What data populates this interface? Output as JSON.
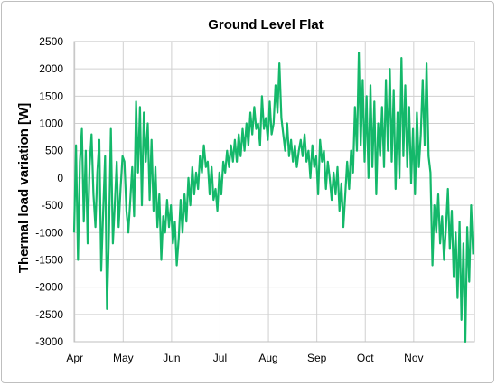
{
  "chart_data": {
    "type": "line",
    "title": "Ground Level Flat",
    "xlabel": "",
    "ylabel": "Thermal load variation [W]",
    "ylim": [
      -3000,
      2500
    ],
    "yticks": [
      2500,
      2000,
      1500,
      1000,
      500,
      0,
      -500,
      -1000,
      -1500,
      -2000,
      -2500,
      -3000
    ],
    "categories": [
      "Apr",
      "May",
      "Jun",
      "Jul",
      "Aug",
      "Sep",
      "Oct",
      "Nov"
    ],
    "grid": true,
    "legend": "none",
    "color": "#14b86a",
    "series": [
      {
        "name": "",
        "points": [
          [
            0.0,
            -1000
          ],
          [
            0.06,
            600
          ],
          [
            0.12,
            -1500
          ],
          [
            0.18,
            300
          ],
          [
            0.24,
            900
          ],
          [
            0.3,
            -800
          ],
          [
            0.36,
            500
          ],
          [
            0.42,
            -1200
          ],
          [
            0.48,
            200
          ],
          [
            0.54,
            800
          ],
          [
            0.6,
            -300
          ],
          [
            0.66,
            -900
          ],
          [
            0.72,
            100
          ],
          [
            0.78,
            700
          ],
          [
            0.84,
            -1700
          ],
          [
            0.9,
            -600
          ],
          [
            0.96,
            400
          ],
          [
            1.02,
            -2400
          ],
          [
            1.08,
            -1000
          ],
          [
            1.14,
            900
          ],
          [
            1.2,
            -1200
          ],
          [
            1.26,
            -500
          ],
          [
            1.32,
            300
          ],
          [
            1.38,
            -900
          ],
          [
            1.44,
            -200
          ],
          [
            1.5,
            400
          ],
          [
            1.56,
            300
          ],
          [
            1.62,
            -600
          ],
          [
            1.68,
            -1000
          ],
          [
            1.74,
            -400
          ],
          [
            1.8,
            200
          ],
          [
            1.86,
            -700
          ],
          [
            1.92,
            1400
          ],
          [
            1.98,
            100
          ],
          [
            2.04,
            1300
          ],
          [
            2.1,
            -500
          ],
          [
            2.16,
            1200
          ],
          [
            2.22,
            300
          ],
          [
            2.28,
            1000
          ],
          [
            2.34,
            -400
          ],
          [
            2.4,
            700
          ],
          [
            2.46,
            -600
          ],
          [
            2.52,
            200
          ],
          [
            2.58,
            -900
          ],
          [
            2.64,
            -300
          ],
          [
            2.7,
            -1500
          ],
          [
            2.76,
            -700
          ],
          [
            2.82,
            -1000
          ],
          [
            2.88,
            -400
          ],
          [
            2.94,
            -900
          ],
          [
            3.0,
            -500
          ],
          [
            3.06,
            -1200
          ],
          [
            3.12,
            -800
          ],
          [
            3.18,
            -1600
          ],
          [
            3.24,
            -1100
          ],
          [
            3.3,
            -400
          ],
          [
            3.36,
            -1000
          ],
          [
            3.42,
            -300
          ],
          [
            3.48,
            -800
          ],
          [
            3.54,
            0
          ],
          [
            3.6,
            -500
          ],
          [
            3.66,
            200
          ],
          [
            3.72,
            -300
          ],
          [
            3.78,
            100
          ],
          [
            3.84,
            -200
          ],
          [
            3.9,
            400
          ],
          [
            3.96,
            100
          ],
          [
            4.02,
            600
          ],
          [
            4.08,
            200
          ],
          [
            4.14,
            300
          ],
          [
            4.2,
            -300
          ],
          [
            4.26,
            200
          ],
          [
            4.32,
            -400
          ],
          [
            4.38,
            -200
          ],
          [
            4.44,
            -600
          ],
          [
            4.5,
            100
          ],
          [
            4.56,
            -300
          ],
          [
            4.62,
            300
          ],
          [
            4.68,
            100
          ],
          [
            4.74,
            500
          ],
          [
            4.8,
            200
          ],
          [
            4.86,
            600
          ],
          [
            4.92,
            300
          ],
          [
            4.98,
            700
          ],
          [
            5.04,
            300
          ],
          [
            5.1,
            800
          ],
          [
            5.16,
            400
          ],
          [
            5.22,
            900
          ],
          [
            5.28,
            500
          ],
          [
            5.34,
            1000
          ],
          [
            5.4,
            600
          ],
          [
            5.46,
            1200
          ],
          [
            5.52,
            800
          ],
          [
            5.58,
            1300
          ],
          [
            5.64,
            900
          ],
          [
            5.7,
            1000
          ],
          [
            5.76,
            600
          ],
          [
            5.82,
            1500
          ],
          [
            5.88,
            900
          ],
          [
            5.94,
            1100
          ],
          [
            6.0,
            700
          ],
          [
            6.06,
            1400
          ],
          [
            6.12,
            800
          ],
          [
            6.18,
            1000
          ],
          [
            6.24,
            1700
          ],
          [
            6.3,
            1200
          ],
          [
            6.36,
            2100
          ],
          [
            6.42,
            1100
          ],
          [
            6.48,
            800
          ],
          [
            6.54,
            500
          ],
          [
            6.6,
            1000
          ],
          [
            6.66,
            400
          ],
          [
            6.72,
            700
          ],
          [
            6.78,
            300
          ],
          [
            6.84,
            600
          ],
          [
            6.9,
            200
          ],
          [
            6.96,
            500
          ],
          [
            7.02,
            700
          ],
          [
            7.08,
            400
          ],
          [
            7.14,
            800
          ],
          [
            7.2,
            300
          ],
          [
            7.26,
            500
          ],
          [
            7.32,
            0
          ],
          [
            7.38,
            600
          ],
          [
            7.44,
            200
          ],
          [
            7.5,
            400
          ],
          [
            7.56,
            -300
          ],
          [
            7.62,
            700
          ],
          [
            7.68,
            300
          ],
          [
            7.74,
            500
          ],
          [
            7.8,
            -200
          ],
          [
            7.86,
            300
          ],
          [
            7.92,
            0
          ],
          [
            7.98,
            -400
          ],
          [
            8.04,
            100
          ],
          [
            8.1,
            -300
          ],
          [
            8.16,
            200
          ],
          [
            8.22,
            -600
          ],
          [
            8.28,
            -100
          ],
          [
            8.34,
            -900
          ],
          [
            8.4,
            -300
          ],
          [
            8.46,
            300
          ],
          [
            8.52,
            -200
          ],
          [
            8.58,
            500
          ],
          [
            8.64,
            100
          ],
          [
            8.7,
            1300
          ],
          [
            8.76,
            500
          ],
          [
            8.82,
            2300
          ],
          [
            8.88,
            600
          ],
          [
            8.94,
            1800
          ],
          [
            9.0,
            300
          ],
          [
            9.06,
            1500
          ],
          [
            9.12,
            0
          ],
          [
            9.18,
            1700
          ],
          [
            9.24,
            200
          ],
          [
            9.3,
            1400
          ],
          [
            9.36,
            -300
          ],
          [
            9.42,
            1000
          ],
          [
            9.48,
            400
          ],
          [
            9.54,
            1300
          ],
          [
            9.6,
            200
          ],
          [
            9.66,
            1800
          ],
          [
            9.72,
            500
          ],
          [
            9.78,
            2000
          ],
          [
            9.84,
            300
          ],
          [
            9.9,
            1600
          ],
          [
            9.96,
            -200
          ],
          [
            10.02,
            1200
          ],
          [
            10.08,
            0
          ],
          [
            10.14,
            2200
          ],
          [
            10.2,
            400
          ],
          [
            10.26,
            1700
          ],
          [
            10.32,
            200
          ],
          [
            10.38,
            1300
          ],
          [
            10.44,
            -100
          ],
          [
            10.5,
            900
          ],
          [
            10.56,
            -300
          ],
          [
            10.62,
            1200
          ],
          [
            10.68,
            200
          ],
          [
            10.74,
            800
          ],
          [
            10.8,
            1800
          ],
          [
            10.86,
            600
          ],
          [
            10.92,
            2100
          ],
          [
            10.98,
            400
          ],
          [
            11.04,
            100
          ],
          [
            11.1,
            -1600
          ],
          [
            11.16,
            -500
          ],
          [
            11.22,
            -1000
          ],
          [
            11.28,
            -300
          ],
          [
            11.34,
            -1200
          ],
          [
            11.4,
            -700
          ],
          [
            11.46,
            -1500
          ],
          [
            11.52,
            -900
          ],
          [
            11.58,
            -200
          ],
          [
            11.64,
            -1300
          ],
          [
            11.7,
            -600
          ],
          [
            11.76,
            -1800
          ],
          [
            11.82,
            -1000
          ],
          [
            11.88,
            -2200
          ],
          [
            11.94,
            -800
          ],
          [
            12.0,
            -2600
          ],
          [
            12.06,
            -1200
          ],
          [
            12.12,
            -3000
          ],
          [
            12.18,
            -900
          ],
          [
            12.24,
            -1900
          ],
          [
            12.3,
            -500
          ],
          [
            12.36,
            -1400
          ]
        ]
      }
    ]
  }
}
